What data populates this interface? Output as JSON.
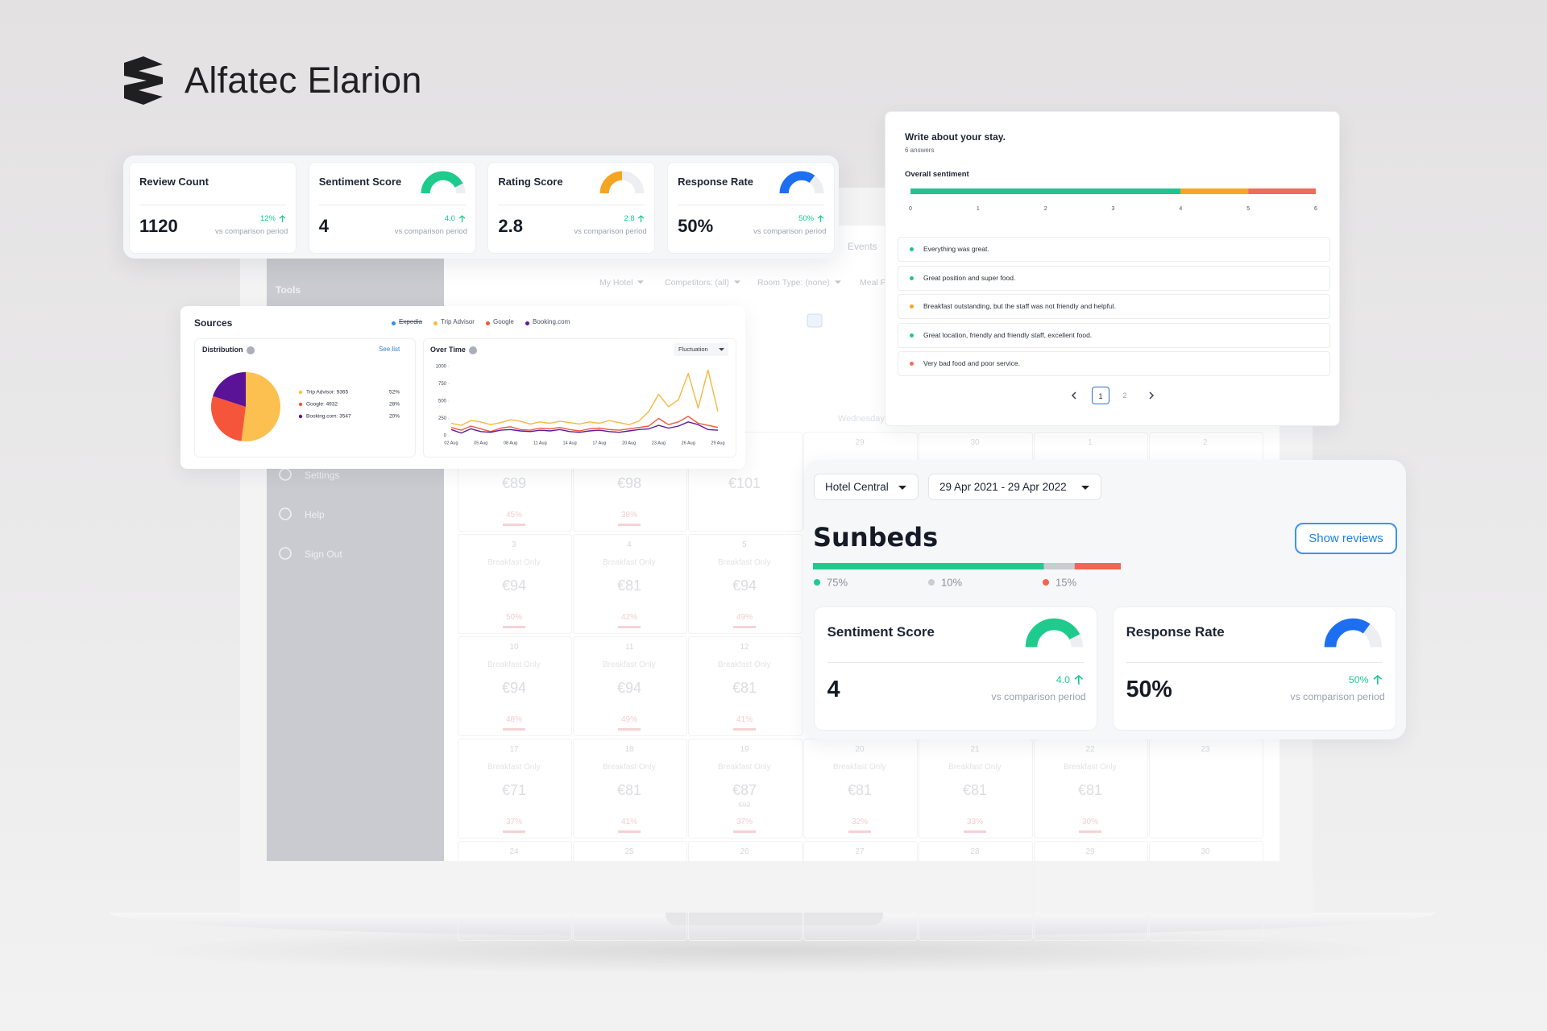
{
  "brand": {
    "name": "Alfatec Elarion"
  },
  "background": {
    "sidebar": {
      "title": "Tools",
      "items": [
        "Settings",
        "Help",
        "Sign Out"
      ]
    },
    "toolbar": {
      "tab": "Events",
      "filters": [
        "My Hotel",
        "Competitors: (all)",
        "Room Type: (none)",
        "Meal P"
      ]
    },
    "calendar": {
      "weekday": "Wednesday",
      "rows": [
        [
          {
            "price": "€89",
            "pct": "45%"
          },
          {
            "price": "€98",
            "pct": "38%"
          },
          {
            "price": "€101"
          },
          {
            "day": "29"
          },
          {
            "day": "30"
          },
          {
            "day": "1"
          },
          {
            "day": "2"
          }
        ],
        [
          {
            "day": "3",
            "meal": "Breakfast Only",
            "price": "€94",
            "pct": "50%"
          },
          {
            "day": "4",
            "meal": "Breakfast Only",
            "price": "€81",
            "pct": "42%"
          },
          {
            "day": "5",
            "meal": "Breakfast Only",
            "price": "€94",
            "pct": "49%"
          },
          null,
          null,
          null,
          null
        ],
        [
          {
            "day": "10",
            "meal": "Breakfast Only",
            "price": "€94",
            "pct": "48%"
          },
          {
            "day": "11",
            "meal": "Breakfast Only",
            "price": "€94",
            "pct": "49%"
          },
          {
            "day": "12",
            "meal": "Breakfast Only",
            "price": "€81",
            "pct": "41%"
          },
          null,
          null,
          null,
          null
        ],
        [
          {
            "day": "17",
            "meal": "Breakfast Only",
            "price": "€71",
            "pct": "37%"
          },
          {
            "day": "18",
            "meal": "Breakfast Only",
            "price": "€81",
            "pct": "41%"
          },
          {
            "day": "19",
            "meal": "Breakfast Only",
            "price": "€87",
            "old_price": "€92",
            "pct": "37%"
          },
          {
            "day": "20",
            "meal": "Breakfast Only",
            "price": "€81",
            "pct": "32%"
          },
          {
            "day": "21",
            "meal": "Breakfast Only",
            "price": "€81",
            "pct": "33%"
          },
          {
            "day": "22",
            "meal": "Breakfast Only",
            "price": "€81",
            "pct": "30%"
          },
          {
            "day": "23"
          }
        ],
        [
          {
            "day": "24"
          },
          {
            "day": "25"
          },
          {
            "day": "26"
          },
          {
            "day": "27"
          },
          {
            "day": "28"
          },
          {
            "day": "29"
          },
          {
            "day": "30"
          }
        ]
      ]
    }
  },
  "kpis": [
    {
      "title": "Review Count",
      "value": "1120",
      "change": "12%",
      "note": "vs comparison period"
    },
    {
      "title": "Sentiment Score",
      "value": "4",
      "change": "4.0",
      "note": "vs comparison period",
      "gauge": {
        "color": "#1fcb8c",
        "fill": 0.85
      }
    },
    {
      "title": "Rating Score",
      "value": "2.8",
      "change": "2.8",
      "note": "vs comparison period",
      "gauge": {
        "color": "#f5a524",
        "fill": 0.5
      }
    },
    {
      "title": "Response Rate",
      "value": "50%",
      "change": "50%",
      "note": "vs comparison period",
      "gauge": {
        "color": "#1c6ff0",
        "fill": 0.7
      }
    }
  ],
  "sources": {
    "title": "Sources",
    "legend": [
      {
        "name": "Expedia",
        "color": "#2f8fe8",
        "disabled": true
      },
      {
        "name": "Trip Advisor",
        "color": "#f5b841"
      },
      {
        "name": "Google",
        "color": "#f0563a"
      },
      {
        "name": "Booking.com",
        "color": "#5b1aa0"
      }
    ],
    "distribution": {
      "title": "Distribution",
      "link": "See list",
      "chart_data": {
        "type": "pie",
        "categories": [
          "Trip Advisor: 9365",
          "Google: 4932",
          "Booking.com: 3547"
        ],
        "values": [
          52,
          28,
          20
        ],
        "value_labels": [
          "52%",
          "28%",
          "20%"
        ],
        "colors": [
          "#fbc04f",
          "#f5553a",
          "#5a1296"
        ]
      }
    },
    "over_time": {
      "title": "Over Time",
      "control": "Fluctuation",
      "chart_data": {
        "type": "line",
        "categories": [
          "02 Aug",
          null,
          null,
          "05 Aug",
          null,
          null,
          "08 Aug",
          null,
          null,
          "11 Aug",
          null,
          null,
          "14 Aug",
          null,
          null,
          "17 Aug",
          null,
          null,
          "20 Aug",
          null,
          null,
          "23 Aug",
          null,
          null,
          "26 Aug",
          null,
          null,
          "29 Aug"
        ],
        "series": [
          {
            "name": "Trip Advisor",
            "color": "#f5b841",
            "values": [
              180,
              150,
              220,
              200,
              160,
              190,
              230,
              210,
              170,
              200,
              180,
              210,
              190,
              170,
              200,
              180,
              220,
              190,
              160,
              210,
              350,
              600,
              420,
              520,
              900,
              400,
              950,
              350
            ]
          },
          {
            "name": "Google",
            "color": "#f0563a",
            "values": [
              120,
              80,
              140,
              100,
              60,
              110,
              130,
              90,
              80,
              110,
              100,
              120,
              90,
              70,
              100,
              110,
              90,
              80,
              100,
              120,
              140,
              250,
              160,
              200,
              280,
              180,
              150,
              120
            ]
          },
          {
            "name": "Booking.com",
            "color": "#5b1aa0",
            "values": [
              90,
              40,
              100,
              60,
              50,
              80,
              90,
              70,
              60,
              80,
              70,
              90,
              60,
              50,
              70,
              80,
              60,
              50,
              70,
              90,
              100,
              150,
              110,
              140,
              200,
              160,
              90,
              80
            ]
          }
        ],
        "ylim": [
          0,
          1000
        ],
        "yticks": [
          0,
          250,
          500,
          750,
          1000
        ]
      }
    }
  },
  "survey": {
    "title": "Write about your stay.",
    "subtitle": "6 answers",
    "sentiment_title": "Overall sentiment",
    "chart_data": {
      "type": "stacked_bar",
      "values": [
        4,
        1,
        1
      ],
      "colors": [
        "#22c38e",
        "#f5a623",
        "#f06b5b"
      ],
      "xlim": [
        0,
        6
      ],
      "xticks": [
        0,
        1,
        2,
        3,
        4,
        5,
        6
      ]
    },
    "answers": [
      {
        "text": "Everything was great.",
        "color": "#22c38e"
      },
      {
        "text": "Great position and super food.",
        "color": "#22c38e"
      },
      {
        "text": "Breakfast outstanding, but the staff was not friendly and helpful.",
        "color": "#f5a623"
      },
      {
        "text": "Great location, friendly and friendly staff, excellent food.",
        "color": "#22c38e"
      },
      {
        "text": "Very bad food and poor service.",
        "color": "#f06b5b"
      }
    ],
    "pages": [
      "1",
      "2"
    ]
  },
  "sunbeds": {
    "hotel": "Hotel Central",
    "period": "29 Apr 2021 - 29 Apr 2022",
    "title": "Sunbeds",
    "button": "Show reviews",
    "chart_data": {
      "type": "stacked_bar",
      "values": [
        75,
        10,
        15
      ],
      "value_labels": [
        "75%",
        "10%",
        "15%"
      ],
      "colors": [
        "#1fcb8c",
        "#c9ccd1",
        "#f26552"
      ]
    },
    "cards": [
      {
        "title": "Sentiment Score",
        "value": "4",
        "change": "4.0",
        "note": "vs comparison period",
        "gauge": {
          "color": "#1fcb8c",
          "fill": 0.85
        }
      },
      {
        "title": "Response Rate",
        "value": "50%",
        "change": "50%",
        "note": "vs comparison period",
        "gauge": {
          "color": "#1c6ff0",
          "fill": 0.7
        }
      }
    ]
  }
}
